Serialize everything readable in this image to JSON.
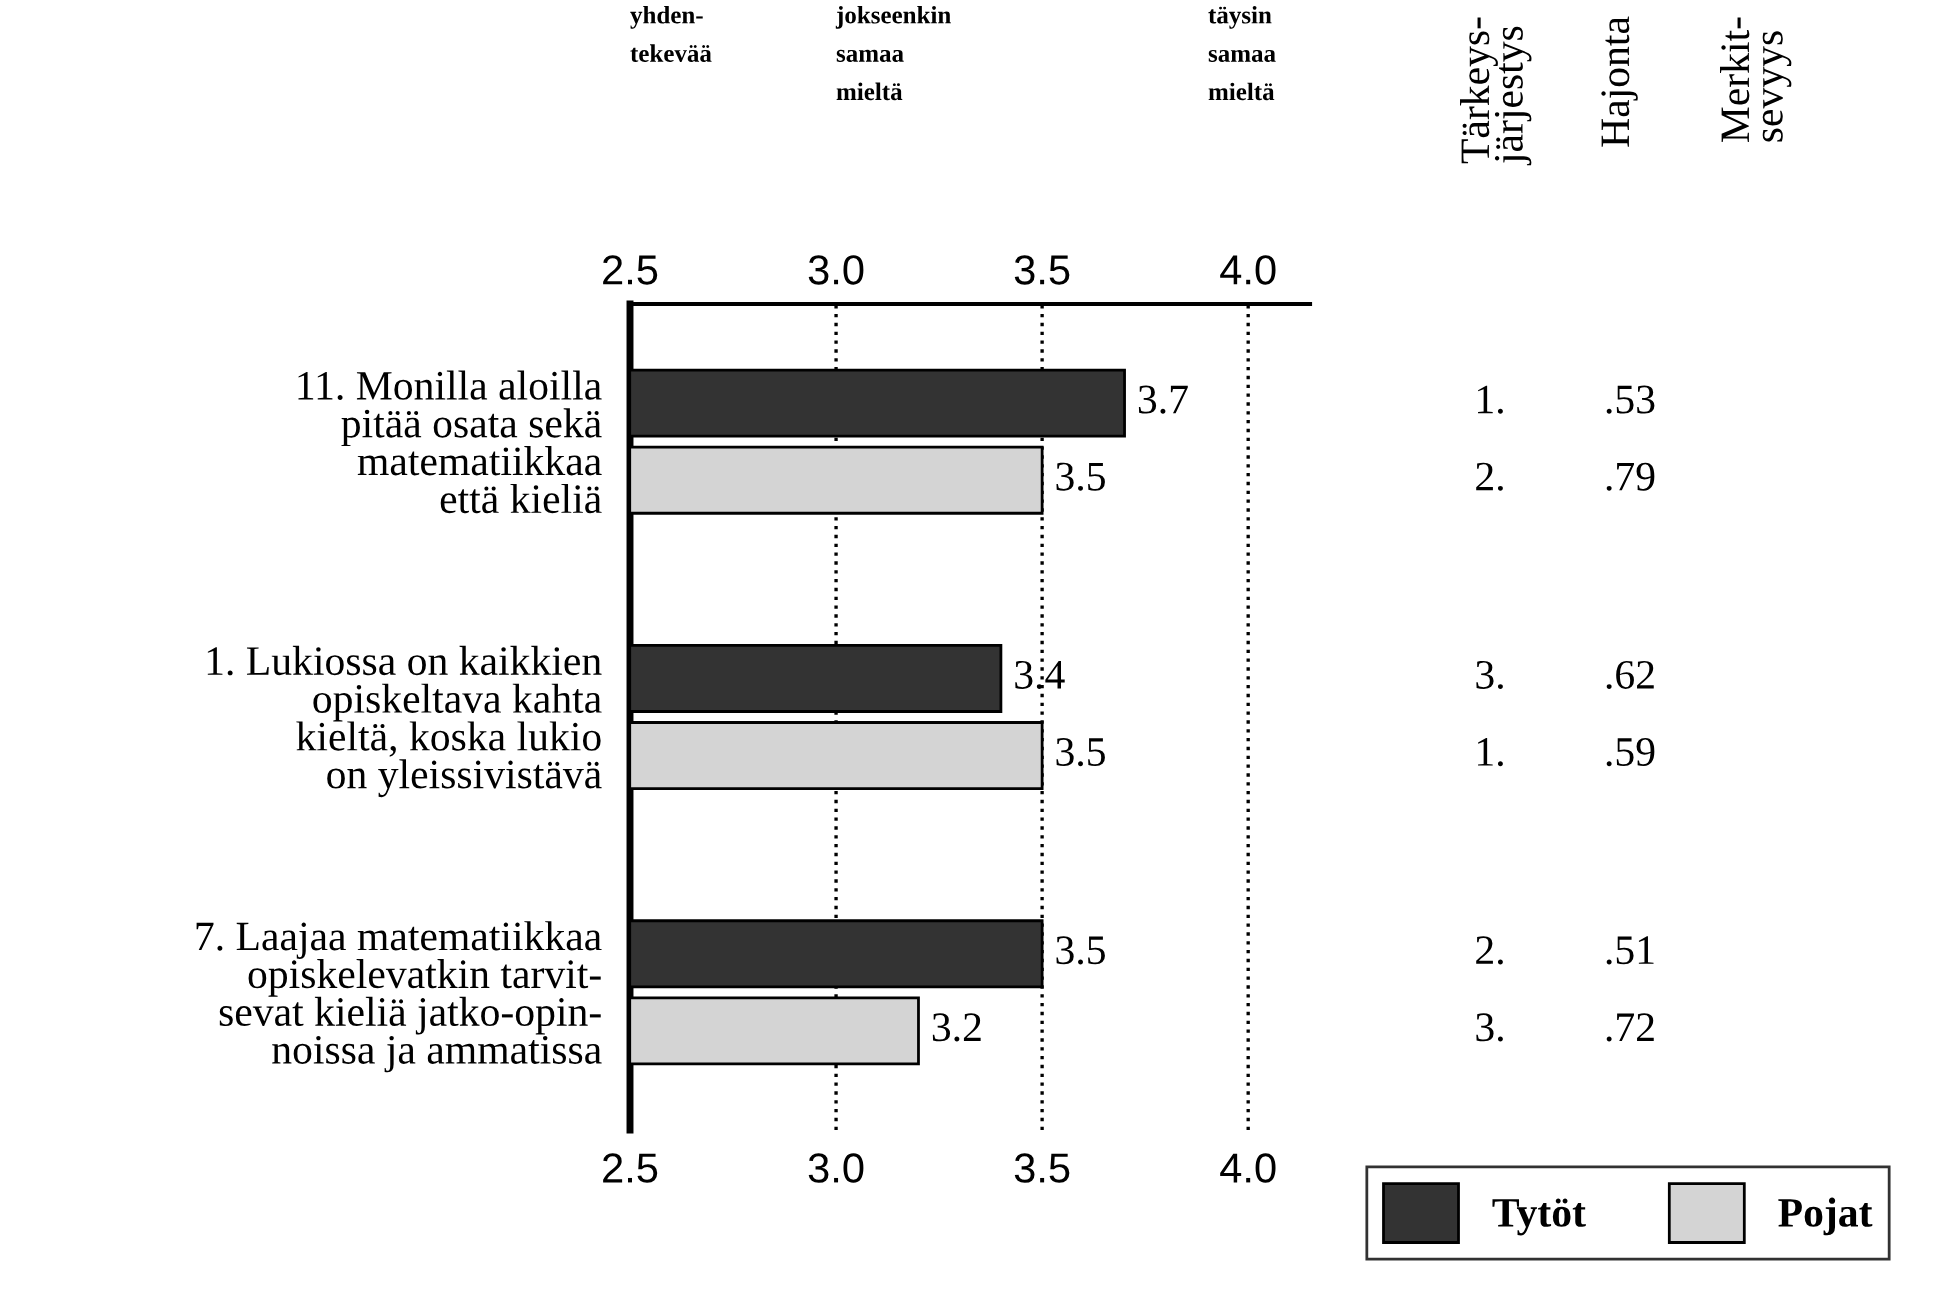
{
  "chart_data": {
    "type": "bar",
    "orientation": "horizontal",
    "categories": [
      "11. Monilla aloilla\npitää osata sekä\nmatematiikkaa\nettä kieliä",
      "1. Lukiossa on kaikkien\nopiskeltava kahta\nkieltä, koska lukio\non yleissivistävä",
      "7. Laajaa matematiikkaa\nopiskelevatkin tarvit-\nsevat kieliä jatko-opin-\nnoissa ja ammatissa"
    ],
    "series": [
      {
        "name": "Tytöt",
        "color": "#333333",
        "values": [
          3.7,
          3.4,
          3.5
        ]
      },
      {
        "name": "Pojat",
        "color": "#d4d4d4",
        "values": [
          3.5,
          3.5,
          3.2
        ]
      }
    ],
    "xlim": [
      2.5,
      4.15
    ],
    "xticks": [
      {
        "value": 2.5,
        "label": "2.5"
      },
      {
        "value": 3.0,
        "label": "3.0"
      },
      {
        "value": 3.5,
        "label": "3.5"
      },
      {
        "value": 4.0,
        "label": "4.0"
      }
    ],
    "x2lim": [
      2.5,
      4.15
    ],
    "x2ticks": [
      {
        "value": 2.5,
        "label": "2.5"
      },
      {
        "value": 3.0,
        "label": "3.0"
      },
      {
        "value": 3.5,
        "label": "3.5"
      },
      {
        "value": 4.0,
        "label": "4.0"
      }
    ],
    "grid": "x",
    "line_style": "dotted",
    "data_labels": true,
    "legend": "bottom right",
    "annotations": [
      "yhden-\ntekevää",
      "jokseenkin\nsamaa\nmieltä",
      "täysin\nsamaa\nmieltä",
      "Tärkeys-\njärjestys",
      "Hajonta",
      "Merkit-\nsevyys",
      "1.",
      ".53",
      "2.",
      ".79",
      "3.",
      ".62",
      "1.",
      ".59",
      "2.",
      ".51",
      "3.",
      ".72"
    ]
  }
}
